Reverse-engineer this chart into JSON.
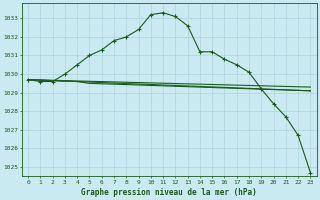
{
  "background_color": "#c8eaf0",
  "grid_color": "#aaccd8",
  "line_color": "#1a5c1a",
  "xlabel": "Graphe pression niveau de la mer (hPa)",
  "xlim": [
    -0.5,
    23.5
  ],
  "ylim": [
    1024.5,
    1033.8
  ],
  "yticks": [
    1025,
    1026,
    1027,
    1028,
    1029,
    1030,
    1031,
    1032,
    1033
  ],
  "xticks": [
    0,
    1,
    2,
    3,
    4,
    5,
    6,
    7,
    8,
    9,
    10,
    11,
    12,
    13,
    14,
    15,
    16,
    17,
    18,
    19,
    20,
    21,
    22,
    23
  ],
  "series_main": {
    "x": [
      0,
      1,
      2,
      3,
      4,
      5,
      6,
      7,
      8,
      9,
      10,
      11,
      12,
      13,
      14,
      15,
      16,
      17,
      18,
      19,
      20,
      21,
      22,
      23
    ],
    "y": [
      1029.7,
      1029.6,
      1029.6,
      1030.0,
      1030.5,
      1031.0,
      1031.3,
      1031.8,
      1032.0,
      1032.4,
      1033.2,
      1033.3,
      1033.1,
      1032.6,
      1031.2,
      1031.2,
      1030.8,
      1030.5,
      1030.1,
      1029.2,
      1028.4,
      1027.7,
      1026.7,
      1024.7
    ]
  },
  "series_flat1": {
    "x": [
      0,
      23
    ],
    "y": [
      1029.7,
      1029.3
    ]
  },
  "series_flat2": {
    "x": [
      0,
      23
    ],
    "y": [
      1029.7,
      1029.1
    ]
  },
  "series_flat3": {
    "x": [
      0,
      4,
      5,
      23
    ],
    "y": [
      1029.7,
      1029.6,
      1029.5,
      1029.1
    ]
  },
  "xlabel_fontsize": 5.5,
  "tick_fontsize": 4.5,
  "linewidth": 0.8,
  "markersize": 2.5
}
